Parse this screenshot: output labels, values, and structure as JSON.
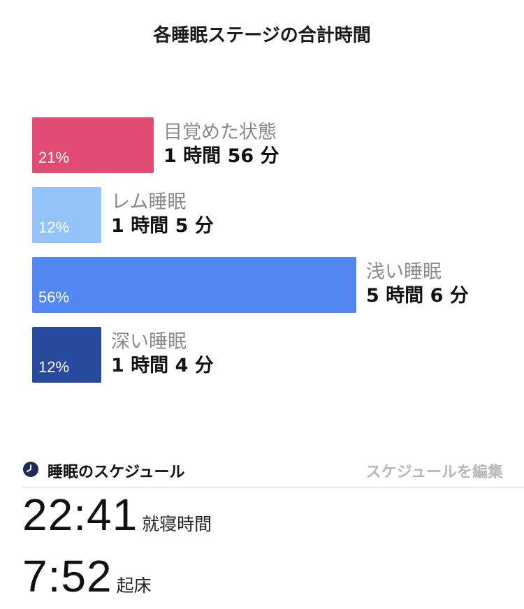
{
  "title": "各睡眠ステージの合計時間",
  "stages": [
    {
      "name": "目覚めた状態",
      "percent": "21%",
      "duration": "1 時間 56 分",
      "share": 0.21,
      "color": "#e04c71"
    },
    {
      "name": "レム睡眠",
      "percent": "12%",
      "duration": "1 時間 5 分",
      "share": 0.12,
      "color": "#93c3f8"
    },
    {
      "name": "浅い睡眠",
      "percent": "56%",
      "duration": "5 時間 6 分",
      "share": 0.56,
      "color": "#5388f2"
    },
    {
      "name": "深い睡眠",
      "percent": "12%",
      "duration": "1 時間 4 分",
      "share": 0.12,
      "color": "#27499e"
    }
  ],
  "schedule": {
    "title": "睡眠のスケジュール",
    "edit_label": "スケジュールを編集",
    "icon": "clock-icon",
    "bedtime": {
      "time": "22:41",
      "label": "就寝時間"
    },
    "wake": {
      "time": "7:52",
      "label": "起床"
    }
  }
}
